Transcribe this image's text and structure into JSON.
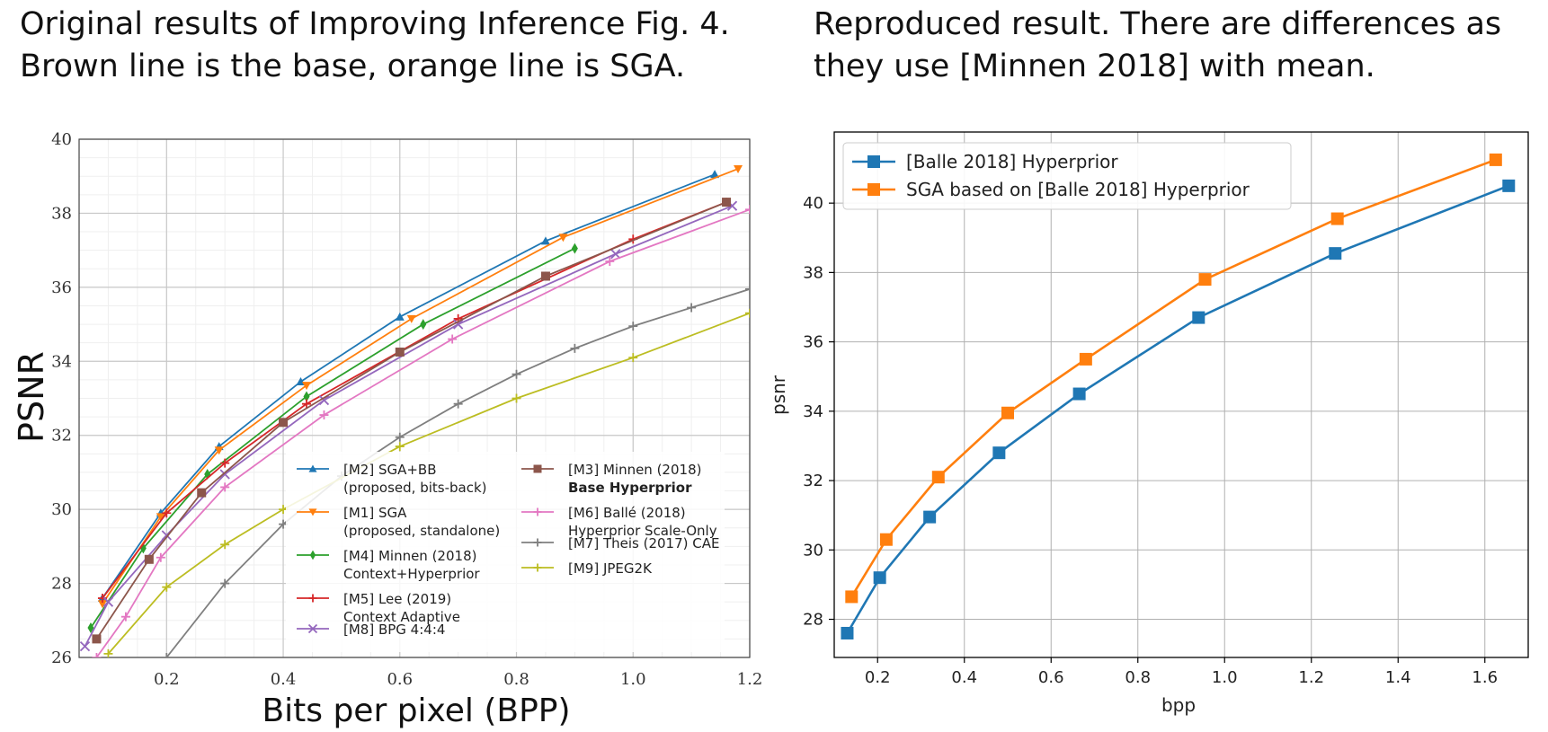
{
  "captions": {
    "left": [
      "Original results of Improving Inference Fig. 4.",
      "Brown line is the base, orange line is SGA."
    ],
    "right": [
      "Reproduced result. There are differences as",
      "they use [Minnen 2018] with mean."
    ]
  },
  "chart_data": [
    {
      "type": "line",
      "xlabel": "Bits per pixel (BPP)",
      "ylabel": "PSNR",
      "xlim": [
        0.05,
        1.2
      ],
      "ylim": [
        26,
        40
      ],
      "xticks": [
        "0.2",
        "0.4",
        "0.6",
        "0.8",
        "1.0",
        "1.2"
      ],
      "yticks": [
        "26",
        "28",
        "30",
        "32",
        "34",
        "36",
        "38",
        "40"
      ],
      "grid": true,
      "legend_position": "lower-right",
      "series": [
        {
          "name": "[M2] SGA+BB",
          "name2": "(proposed, bits-back)",
          "color": "#1f77b4",
          "marker": "^",
          "x": [
            0.09,
            0.19,
            0.29,
            0.43,
            0.6,
            0.85,
            1.14
          ],
          "y": [
            27.6,
            29.9,
            31.7,
            33.45,
            35.2,
            37.25,
            39.05
          ]
        },
        {
          "name": "[M1] SGA",
          "name2": "(proposed, standalone)",
          "color": "#ff7f0e",
          "marker": "v",
          "x": [
            0.09,
            0.19,
            0.29,
            0.44,
            0.62,
            0.88,
            1.18
          ],
          "y": [
            27.45,
            29.8,
            31.6,
            33.35,
            35.15,
            37.35,
            39.2
          ]
        },
        {
          "name": "[M4] Minnen (2018)",
          "name2": "Context+Hyperprior",
          "color": "#2ca02c",
          "marker": "d",
          "x": [
            0.07,
            0.16,
            0.27,
            0.44,
            0.64,
            0.9
          ],
          "y": [
            26.8,
            28.95,
            30.95,
            33.05,
            35.0,
            37.05
          ]
        },
        {
          "name": "[M5] Lee (2019)",
          "name2": "Context Adaptive",
          "color": "#d62728",
          "marker": "+",
          "x": [
            0.09,
            0.2,
            0.3,
            0.44,
            0.7,
            1.0,
            1.16
          ],
          "y": [
            27.6,
            29.9,
            31.25,
            32.85,
            35.15,
            37.3,
            38.3
          ]
        },
        {
          "name": "[M8] BPG 4:4:4",
          "name2": "",
          "color": "#9467bd",
          "marker": "x",
          "x": [
            0.06,
            0.1,
            0.2,
            0.3,
            0.47,
            0.7,
            0.97,
            1.17
          ],
          "y": [
            26.3,
            27.5,
            29.3,
            30.95,
            32.95,
            35.0,
            36.9,
            38.2
          ]
        },
        {
          "name": "[M3] Minnen (2018)",
          "name2": "Base Hyperprior",
          "color": "#8c564b",
          "marker": "s",
          "x": [
            0.08,
            0.17,
            0.26,
            0.4,
            0.6,
            0.85,
            1.16
          ],
          "y": [
            26.5,
            28.65,
            30.45,
            32.35,
            34.25,
            36.3,
            38.3
          ]
        },
        {
          "name": "[M6] Ballé (2018)",
          "name2": "Hyperprior Scale-Only",
          "color": "#e377c2",
          "marker": "+",
          "x": [
            0.08,
            0.13,
            0.19,
            0.3,
            0.47,
            0.69,
            0.96,
            1.2
          ],
          "y": [
            26.0,
            27.1,
            28.7,
            30.6,
            32.55,
            34.6,
            36.7,
            38.1
          ]
        },
        {
          "name": "[M7] Theis (2017) CAE",
          "name2": "",
          "color": "#7f7f7f",
          "marker": "+",
          "x": [
            0.2,
            0.3,
            0.4,
            0.5,
            0.6,
            0.7,
            0.8,
            0.9,
            1.0,
            1.1,
            1.2
          ],
          "y": [
            26.0,
            28.0,
            29.6,
            30.9,
            31.95,
            32.85,
            33.65,
            34.35,
            34.95,
            35.45,
            35.95
          ]
        },
        {
          "name": "[M9] JPEG2K",
          "name2": "",
          "color": "#bcbd22",
          "marker": "+",
          "x": [
            0.1,
            0.2,
            0.3,
            0.4,
            0.6,
            0.8,
            1.0,
            1.2
          ],
          "y": [
            26.1,
            27.9,
            29.05,
            30.0,
            31.7,
            33.0,
            34.1,
            35.3
          ]
        }
      ]
    },
    {
      "type": "line",
      "xlabel": "bpp",
      "ylabel": "psnr",
      "xlim": [
        0.1,
        1.7
      ],
      "ylim": [
        26.9,
        42.05
      ],
      "xticks": [
        "0.2",
        "0.4",
        "0.6",
        "0.8",
        "1.0",
        "1.2",
        "1.4",
        "1.6"
      ],
      "yticks": [
        "28",
        "30",
        "32",
        "34",
        "36",
        "38",
        "40"
      ],
      "grid": true,
      "legend_position": "top-left",
      "series": [
        {
          "name": "[Balle 2018] Hyperprior",
          "color": "#1f77b4",
          "marker": "s",
          "x": [
            0.13,
            0.205,
            0.32,
            0.48,
            0.665,
            0.94,
            1.255,
            1.655
          ],
          "y": [
            27.6,
            29.2,
            30.95,
            32.8,
            34.5,
            36.7,
            38.55,
            40.5
          ]
        },
        {
          "name": "SGA based on [Balle 2018] Hyperprior",
          "color": "#ff7f0e",
          "marker": "s",
          "x": [
            0.14,
            0.22,
            0.34,
            0.5,
            0.68,
            0.955,
            1.26,
            1.625
          ],
          "y": [
            28.65,
            30.3,
            32.1,
            33.95,
            35.5,
            37.8,
            39.55,
            41.25
          ]
        }
      ]
    }
  ]
}
